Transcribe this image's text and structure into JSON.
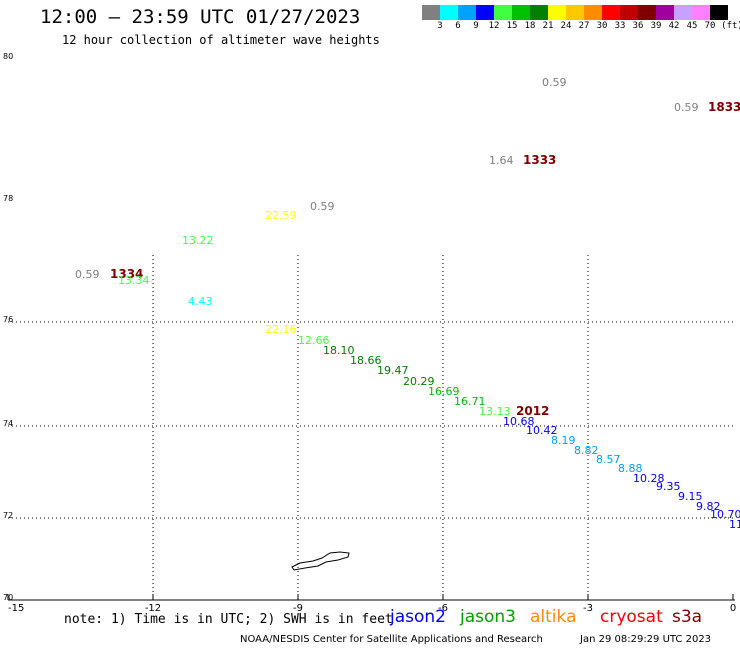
{
  "header": {
    "title": "12:00 — 23:59 UTC 01/27/2023",
    "subtitle": "12 hour collection of altimeter wave heights"
  },
  "legend": {
    "unit": "(ft)",
    "bins": [
      {
        "label": "3",
        "color": "#808080"
      },
      {
        "label": "6",
        "color": "#00ffff"
      },
      {
        "label": "9",
        "color": "#00a0ff"
      },
      {
        "label": "12",
        "color": "#0000ff"
      },
      {
        "label": "15",
        "color": "#40ff40"
      },
      {
        "label": "18",
        "color": "#00c000"
      },
      {
        "label": "21",
        "color": "#008000"
      },
      {
        "label": "24",
        "color": "#ffff00"
      },
      {
        "label": "27",
        "color": "#ffc800"
      },
      {
        "label": "30",
        "color": "#ff8c00"
      },
      {
        "label": "33",
        "color": "#ff0000"
      },
      {
        "label": "36",
        "color": "#c00000"
      },
      {
        "label": "39",
        "color": "#800000"
      },
      {
        "label": "42",
        "color": "#a000a0"
      },
      {
        "label": "45",
        "color": "#c8a0ff"
      },
      {
        "label": "70",
        "color": "#ff80ff"
      },
      {
        "label": "",
        "color": "#000000"
      }
    ]
  },
  "axes": {
    "x_ticks": [
      "-15",
      "-12",
      "-9",
      "-6",
      "-3",
      "0"
    ],
    "y_ticks": [
      "80",
      "78",
      "76",
      "74",
      "72",
      "70"
    ]
  },
  "observations": [
    {
      "text": "0.59",
      "color": "#808080"
    },
    {
      "text": "0.59",
      "color": "#808080"
    },
    {
      "text": "1833",
      "color": "#800000"
    },
    {
      "text": "1.64",
      "color": "#808080"
    },
    {
      "text": "1333",
      "color": "#800000"
    },
    {
      "text": "22.59",
      "color": "#ffff00"
    },
    {
      "text": "0.59",
      "color": "#808080"
    },
    {
      "text": "13.22",
      "color": "#40ff40"
    },
    {
      "text": "0.59",
      "color": "#808080"
    },
    {
      "text": "1334",
      "color": "#800000"
    },
    {
      "text": "13.34",
      "color": "#40ff40"
    },
    {
      "text": "4.43",
      "color": "#00ffff"
    },
    {
      "text": "22.16",
      "color": "#ffff00"
    },
    {
      "text": "12.66",
      "color": "#40ff40"
    },
    {
      "text": "18.10",
      "color": "#008000"
    },
    {
      "text": "18.66",
      "color": "#008000"
    },
    {
      "text": "19.47",
      "color": "#008000"
    },
    {
      "text": "20.29",
      "color": "#008000"
    },
    {
      "text": "16.69",
      "color": "#00c000"
    },
    {
      "text": "16.71",
      "color": "#00c000"
    },
    {
      "text": "13.13",
      "color": "#40ff40"
    },
    {
      "text": "2012",
      "color": "#800000"
    },
    {
      "text": "10.68",
      "color": "#0000ff"
    },
    {
      "text": "10.42",
      "color": "#0000ff"
    },
    {
      "text": "8.19",
      "color": "#00a0ff"
    },
    {
      "text": "8.82",
      "color": "#00a0ff"
    },
    {
      "text": "8.57",
      "color": "#00a0ff"
    },
    {
      "text": "8.88",
      "color": "#00a0ff"
    },
    {
      "text": "10.28",
      "color": "#0000ff"
    },
    {
      "text": "9.35",
      "color": "#0000ff"
    },
    {
      "text": "9.15",
      "color": "#0000ff"
    },
    {
      "text": "9.82",
      "color": "#0000ff"
    },
    {
      "text": "10.70",
      "color": "#0000ff"
    },
    {
      "text": "11",
      "color": "#0000ff"
    }
  ],
  "footer": {
    "note": "note: 1) Time is in UTC; 2) SWH is in feet",
    "satellites": [
      {
        "name": "jason2",
        "color": "#0000ff"
      },
      {
        "name": "jason3",
        "color": "#00a000"
      },
      {
        "name": "altika",
        "color": "#ff8c00"
      },
      {
        "name": "cryosat",
        "color": "#ff0000"
      },
      {
        "name": "s3a",
        "color": "#800000"
      }
    ],
    "credit": "NOAA/NESDIS Center for Satellite Applications and Research",
    "timestamp": "Jan 29 08:29:29 UTC 2023"
  }
}
